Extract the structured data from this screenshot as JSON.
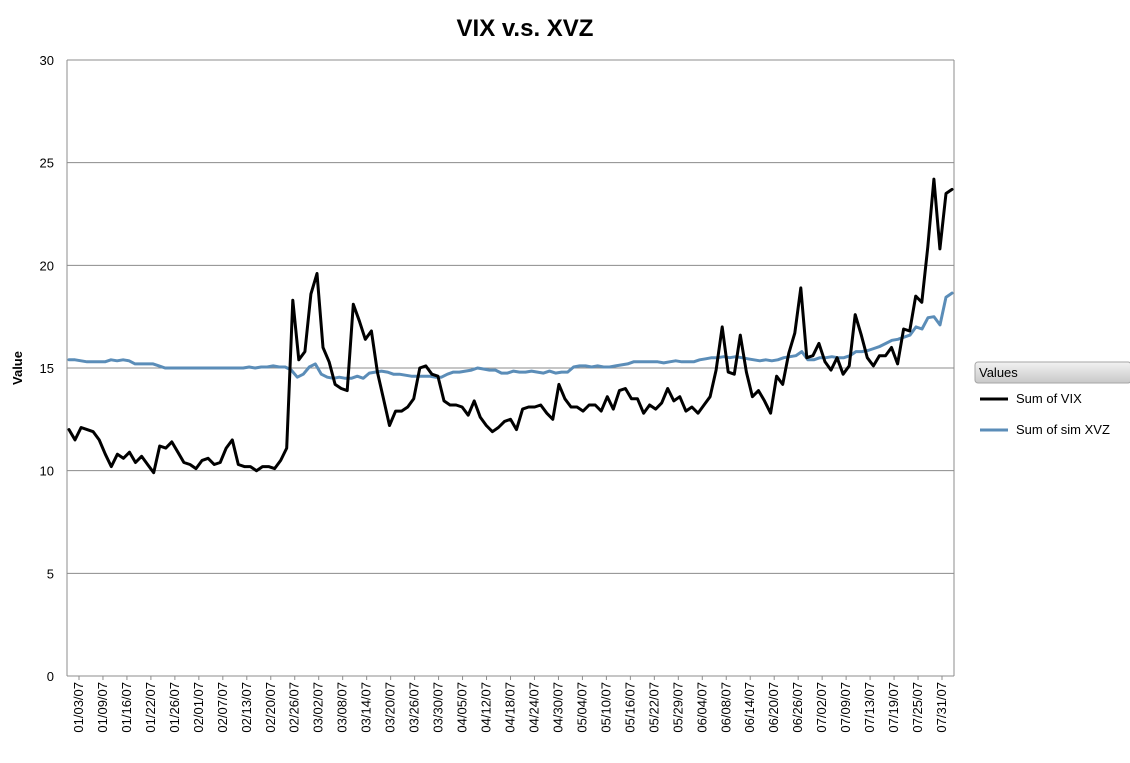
{
  "chart_data": {
    "type": "line",
    "title": "VIX v.s. XVZ",
    "xlabel": "",
    "ylabel": "Value",
    "ylim": [
      0,
      30
    ],
    "yticks": [
      0,
      5,
      10,
      15,
      20,
      25,
      30
    ],
    "grid": true,
    "legend_position": "right",
    "legend_title": "Values",
    "x_tick_labels": [
      "01/03/07",
      "01/09/07",
      "01/16/07",
      "01/22/07",
      "01/26/07",
      "02/01/07",
      "02/07/07",
      "02/13/07",
      "02/20/07",
      "02/26/07",
      "03/02/07",
      "03/08/07",
      "03/14/07",
      "03/20/07",
      "03/26/07",
      "03/30/07",
      "04/05/07",
      "04/12/07",
      "04/18/07",
      "04/24/07",
      "04/30/07",
      "05/04/07",
      "05/10/07",
      "05/16/07",
      "05/22/07",
      "05/29/07",
      "06/04/07",
      "06/08/07",
      "06/14/07",
      "06/20/07",
      "06/26/07",
      "07/02/07",
      "07/09/07",
      "07/13/07",
      "07/19/07",
      "07/25/07",
      "07/31/07"
    ],
    "series": [
      {
        "name": "Sum of VIX",
        "color": "#000000",
        "values": [
          12.0,
          11.5,
          12.1,
          12.0,
          11.9,
          11.5,
          10.8,
          10.2,
          10.8,
          10.6,
          10.9,
          10.4,
          10.7,
          10.3,
          9.9,
          11.2,
          11.1,
          11.4,
          10.9,
          10.4,
          10.3,
          10.1,
          10.5,
          10.6,
          10.3,
          10.4,
          11.1,
          11.5,
          10.3,
          10.2,
          10.2,
          10.0,
          10.2,
          10.2,
          10.1,
          10.5,
          11.1,
          18.3,
          15.4,
          15.8,
          18.6,
          19.6,
          16.0,
          15.3,
          14.2,
          14.0,
          13.9,
          18.1,
          17.3,
          16.4,
          16.8,
          14.8,
          13.5,
          12.2,
          12.9,
          12.9,
          13.1,
          13.5,
          15.0,
          15.1,
          14.7,
          14.6,
          13.4,
          13.2,
          13.2,
          13.1,
          12.7,
          13.4,
          12.6,
          12.2,
          11.9,
          12.1,
          12.4,
          12.5,
          12.0,
          13.0,
          13.1,
          13.1,
          13.2,
          12.8,
          12.5,
          14.2,
          13.5,
          13.1,
          13.1,
          12.9,
          13.2,
          13.2,
          12.9,
          13.6,
          13.0,
          13.9,
          14.0,
          13.5,
          13.5,
          12.8,
          13.2,
          13.0,
          13.3,
          14.0,
          13.4,
          13.6,
          12.9,
          13.1,
          12.8,
          13.2,
          13.6,
          14.9,
          17.0,
          14.8,
          14.7,
          16.6,
          14.8,
          13.6,
          13.9,
          13.4,
          12.8,
          14.6,
          14.2,
          15.7,
          16.7,
          18.9,
          15.5,
          15.6,
          16.2,
          15.3,
          14.9,
          15.5,
          14.7,
          15.1,
          17.6,
          16.6,
          15.5,
          15.1,
          15.6,
          15.6,
          16.0,
          15.2,
          16.9,
          16.8,
          18.5,
          18.2,
          20.9,
          24.2,
          20.8,
          23.5,
          23.7
        ]
      },
      {
        "name": "Sum of sim XVZ",
        "color": "#5b8db8",
        "values": [
          15.4,
          15.4,
          15.35,
          15.3,
          15.3,
          15.3,
          15.3,
          15.4,
          15.35,
          15.4,
          15.35,
          15.2,
          15.2,
          15.2,
          15.2,
          15.1,
          15.0,
          15.0,
          15.0,
          15.0,
          15.0,
          15.0,
          15.0,
          15.0,
          15.0,
          15.0,
          15.0,
          15.0,
          15.0,
          15.0,
          15.05,
          15.0,
          15.05,
          15.05,
          15.1,
          15.05,
          15.05,
          14.9,
          14.55,
          14.7,
          15.05,
          15.2,
          14.7,
          14.55,
          14.5,
          14.55,
          14.5,
          14.5,
          14.6,
          14.5,
          14.75,
          14.8,
          14.85,
          14.8,
          14.7,
          14.7,
          14.65,
          14.6,
          14.6,
          14.6,
          14.6,
          14.55,
          14.55,
          14.7,
          14.8,
          14.8,
          14.85,
          14.9,
          15.0,
          14.95,
          14.9,
          14.9,
          14.75,
          14.75,
          14.85,
          14.8,
          14.8,
          14.85,
          14.8,
          14.75,
          14.85,
          14.75,
          14.8,
          14.8,
          15.05,
          15.1,
          15.1,
          15.05,
          15.1,
          15.05,
          15.05,
          15.1,
          15.15,
          15.2,
          15.3,
          15.3,
          15.3,
          15.3,
          15.3,
          15.25,
          15.3,
          15.35,
          15.3,
          15.3,
          15.3,
          15.4,
          15.45,
          15.5,
          15.5,
          15.55,
          15.5,
          15.55,
          15.5,
          15.45,
          15.4,
          15.35,
          15.4,
          15.35,
          15.4,
          15.5,
          15.55,
          15.6,
          15.8,
          15.4,
          15.4,
          15.5,
          15.5,
          15.55,
          15.5,
          15.5,
          15.6,
          15.8,
          15.8,
          15.85,
          15.95,
          16.05,
          16.2,
          16.35,
          16.4,
          16.5,
          16.6,
          17.0,
          16.9,
          17.45,
          17.5,
          17.1,
          18.45,
          18.65
        ]
      }
    ]
  }
}
